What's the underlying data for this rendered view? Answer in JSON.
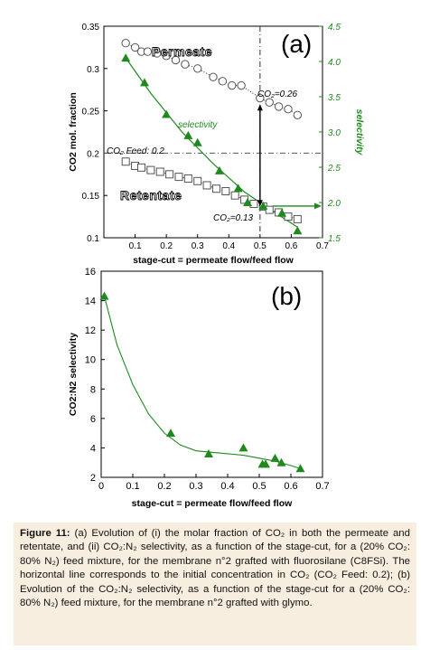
{
  "chart_data": [
    {
      "type": "scatter",
      "panel_label": "(a)",
      "xlabel": "stage-cut = permeate flow/feed flow",
      "ylabel": "CO2 mol. fraction",
      "ylabel2": "selectivity",
      "xlim": [
        0,
        0.7
      ],
      "ylim": [
        0.1,
        0.35
      ],
      "ylim2": [
        1.5,
        4.5
      ],
      "xticks": [
        "0.1",
        "0.2",
        "0.3",
        "0.4",
        "0.5",
        "0.6",
        "0.7"
      ],
      "yticks": [
        "0.1",
        "0.15",
        "0.2",
        "0.25",
        "0.3",
        "0.35"
      ],
      "yticks2": [
        "1.5",
        "2.0",
        "2.5",
        "3.0",
        "3.5",
        "4.0",
        "4.5"
      ],
      "series": [
        {
          "name": "Permeate",
          "axis": "left",
          "marker": "circle",
          "color": "#555555",
          "x": [
            0.07,
            0.1,
            0.12,
            0.14,
            0.17,
            0.2,
            0.23,
            0.26,
            0.3,
            0.35,
            0.38,
            0.41,
            0.44,
            0.5,
            0.53,
            0.56,
            0.59,
            0.62
          ],
          "y": [
            0.33,
            0.325,
            0.32,
            0.32,
            0.318,
            0.315,
            0.31,
            0.305,
            0.3,
            0.29,
            0.285,
            0.28,
            0.28,
            0.265,
            0.26,
            0.255,
            0.252,
            0.245
          ]
        },
        {
          "name": "Retentate",
          "axis": "left",
          "marker": "square",
          "color": "#555555",
          "x": [
            0.07,
            0.1,
            0.12,
            0.15,
            0.18,
            0.21,
            0.24,
            0.27,
            0.3,
            0.33,
            0.36,
            0.39,
            0.42,
            0.45,
            0.48,
            0.51,
            0.53,
            0.56,
            0.59,
            0.62
          ],
          "y": [
            0.19,
            0.185,
            0.183,
            0.18,
            0.178,
            0.175,
            0.172,
            0.17,
            0.167,
            0.162,
            0.158,
            0.155,
            0.15,
            0.145,
            0.14,
            0.137,
            0.133,
            0.13,
            0.125,
            0.122
          ]
        },
        {
          "name": "selectivity",
          "axis": "right",
          "marker": "triangle",
          "color": "#1e8a1e",
          "x": [
            0.07,
            0.13,
            0.2,
            0.27,
            0.3,
            0.37,
            0.43,
            0.46,
            0.51,
            0.57,
            0.62
          ],
          "y": [
            4.05,
            3.7,
            3.25,
            2.95,
            2.85,
            2.45,
            2.2,
            2.0,
            1.95,
            1.85,
            1.6
          ]
        }
      ],
      "fit_selectivity": {
        "x": [
          0.07,
          0.15,
          0.25,
          0.35,
          0.45,
          0.55,
          0.62
        ],
        "y": [
          4.05,
          3.55,
          3.0,
          2.55,
          2.15,
          1.85,
          1.65
        ]
      },
      "annotations": {
        "permeate_label": "Permeate",
        "retentate_label": "Retentate",
        "selectivity_label": "selectivity",
        "feed_label": "CO₂ Feed: 0.2",
        "co2_top": "CO₂=0.26",
        "co2_bottom": "CO₂=0.13"
      },
      "feed_line": 0.2,
      "stage_cut_marker": 0.5
    },
    {
      "type": "scatter",
      "panel_label": "(b)",
      "xlabel": "stage-cut = permeate flow/feed flow",
      "ylabel": "CO2:N2 selectivity",
      "xlim": [
        0,
        0.7
      ],
      "ylim": [
        2,
        16
      ],
      "xticks": [
        "0",
        "0.1",
        "0.2",
        "0.3",
        "0.4",
        "0.5",
        "0.6",
        "0.7"
      ],
      "yticks": [
        "2",
        "4",
        "6",
        "8",
        "10",
        "12",
        "14",
        "16"
      ],
      "series": [
        {
          "name": "selectivity",
          "marker": "triangle",
          "color": "#1e8a1e",
          "x": [
            0.01,
            0.22,
            0.34,
            0.45,
            0.51,
            0.52,
            0.55,
            0.57,
            0.63
          ],
          "y": [
            14.3,
            5.0,
            3.6,
            4.0,
            2.9,
            2.9,
            3.3,
            3.0,
            2.6
          ]
        }
      ],
      "fit": {
        "x": [
          0.01,
          0.05,
          0.1,
          0.15,
          0.2,
          0.25,
          0.3,
          0.35,
          0.4,
          0.45,
          0.5,
          0.55,
          0.6,
          0.63
        ],
        "y": [
          14.3,
          11.0,
          8.3,
          6.3,
          5.0,
          4.2,
          3.8,
          3.7,
          3.6,
          3.5,
          3.3,
          3.1,
          2.8,
          2.6
        ]
      }
    }
  ],
  "caption": {
    "figure_label": "Figure 11:",
    "text": "(a) Evolution of (i) the molar fraction of CO₂ in both the permeate and retentate, and (ii) CO₂:N₂ selectivity, as a function of the stage-cut, for a (20% CO₂: 80% N₂) feed mixture, for the membrane n°2 grafted with fluorosilane (C8FSi). The horizontal line corresponds to the initial concentration in CO₂ (CO₂ Feed: 0.2); (b) Evolution of the CO₂:N₂ selectivity, as a function of the stage-cut for a (20% CO₂: 80% N₂) feed mixture, for the membrane n°2 grafted with glymo."
  },
  "colors": {
    "green": "#1e8a1e",
    "marker_gray": "#555555",
    "caption_bg": "#f8eedf"
  }
}
